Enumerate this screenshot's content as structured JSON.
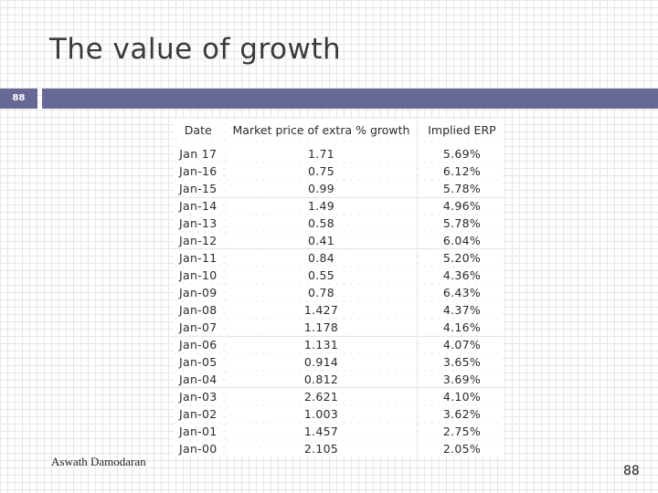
{
  "slide": {
    "title": "The value of growth",
    "badge_number": "88",
    "author": "Aswath Damodaran",
    "page_number": "88"
  },
  "colors": {
    "title_bar": "#686894",
    "title_text": "#3a3a3a"
  },
  "table": {
    "headers": [
      "Date",
      "Market price of extra % growth",
      "Implied ERP"
    ],
    "rows": [
      [
        "Jan 17",
        "1.71",
        "5.69%"
      ],
      [
        "Jan-16",
        "0.75",
        "6.12%"
      ],
      [
        "Jan-15",
        "0.99",
        "5.78%"
      ],
      [
        "Jan-14",
        "1.49",
        "4.96%"
      ],
      [
        "Jan-13",
        "0.58",
        "5.78%"
      ],
      [
        "Jan-12",
        "0.41",
        "6.04%"
      ],
      [
        "Jan-11",
        "0.84",
        "5.20%"
      ],
      [
        "Jan-10",
        "0.55",
        "4.36%"
      ],
      [
        "Jan-09",
        "0.78",
        "6.43%"
      ],
      [
        "Jan-08",
        "1.427",
        "4.37%"
      ],
      [
        "Jan-07",
        "1.178",
        "4.16%"
      ],
      [
        "Jan-06",
        "1.131",
        "4.07%"
      ],
      [
        "Jan-05",
        "0.914",
        "3.65%"
      ],
      [
        "Jan-04",
        "0.812",
        "3.69%"
      ],
      [
        "Jan-03",
        "2.621",
        "4.10%"
      ],
      [
        "Jan-02",
        "1.003",
        "3.62%"
      ],
      [
        "Jan-01",
        "1.457",
        "2.75%"
      ],
      [
        "Jan-00",
        "2.105",
        "2.05%"
      ]
    ]
  }
}
